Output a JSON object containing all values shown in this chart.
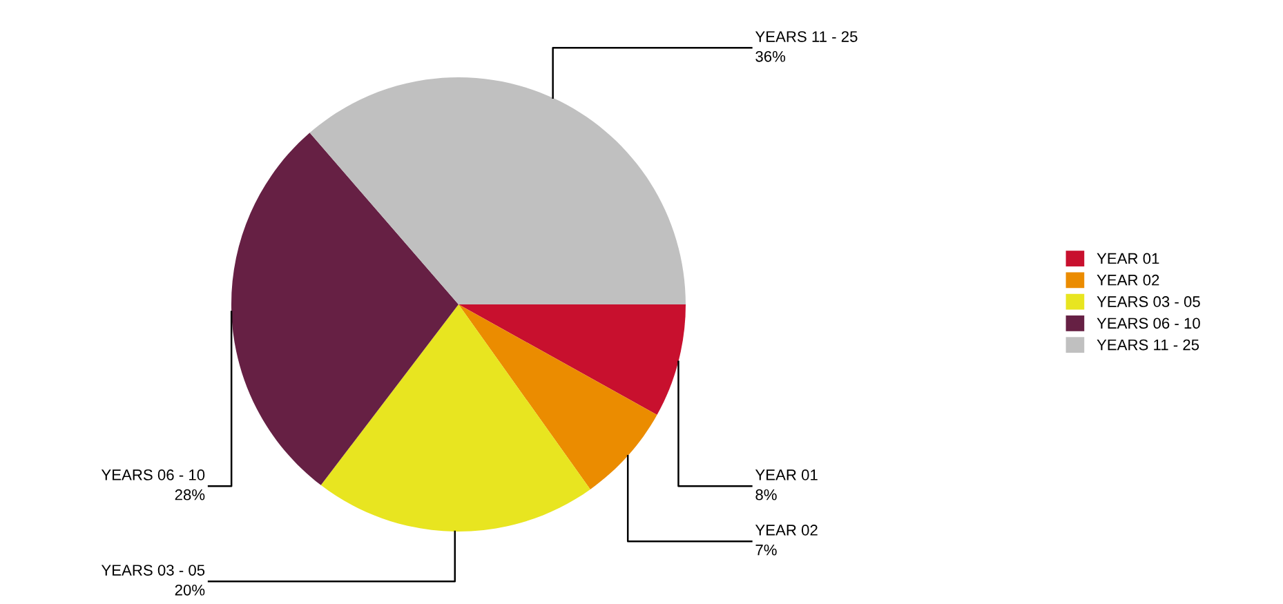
{
  "chart_data": {
    "type": "pie",
    "categories": [
      "YEAR 01",
      "YEAR 02",
      "YEARS 03 - 05",
      "YEARS 06 - 10",
      "YEARS 11 - 25"
    ],
    "values": [
      8,
      7,
      20,
      28,
      36
    ],
    "value_labels": [
      "8%",
      "7%",
      "20%",
      "28%",
      "36%"
    ],
    "colors": [
      "#c8102e",
      "#eb8c00",
      "#e8e520",
      "#662044",
      "#c0c0c0"
    ],
    "legend": "right"
  }
}
